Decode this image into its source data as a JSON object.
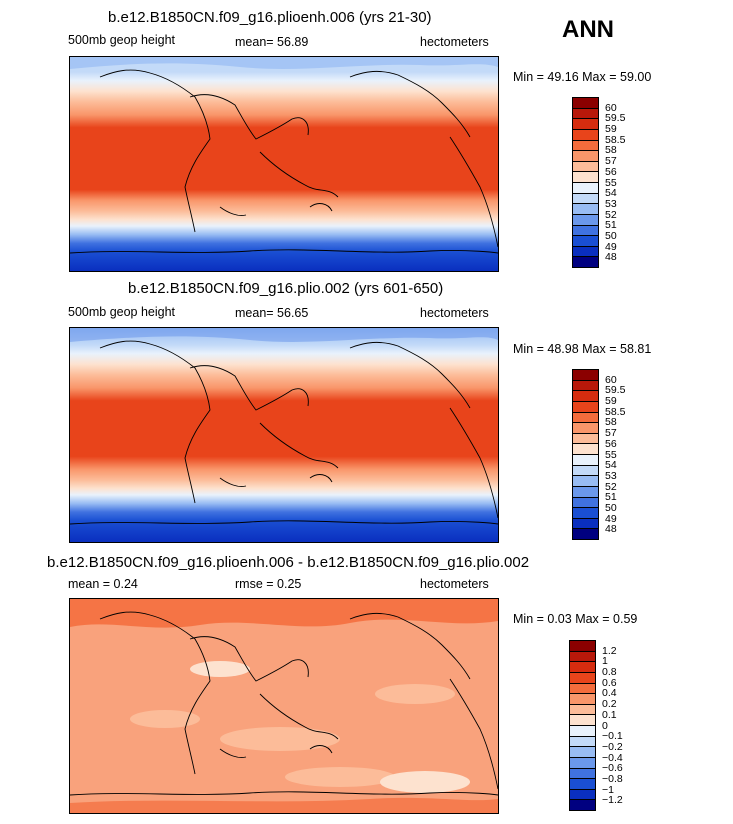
{
  "season": "ANN",
  "panels": [
    {
      "title": "b.e12.B1850CN.f09_g16.plioenh.006 (yrs 21-30)",
      "left_label": "500mb  geop height",
      "center_label": "mean=   56.89",
      "right_label": "hectometers",
      "stats": "Min =   49.16  Max =   59.00",
      "colorbar_labels": [
        "60",
        "59.5",
        "59",
        "58.5",
        "58",
        "57",
        "56",
        "55",
        "54",
        "53",
        "52",
        "51",
        "50",
        "49",
        "48"
      ],
      "colorbar_colors": [
        "#8b0000",
        "#b8180a",
        "#d62c0f",
        "#e8441b",
        "#f46c3c",
        "#f9966a",
        "#fcbc99",
        "#fde2cf",
        "#e9f2fc",
        "#c3daf8",
        "#98bcf3",
        "#6b98eb",
        "#4072e0",
        "#1a4fd3",
        "#0a2fbf",
        "#000080"
      ]
    },
    {
      "title": "b.e12.B1850CN.f09_g16.plio.002 (yrs 601-650)",
      "left_label": "500mb  geop height",
      "center_label": "mean=   56.65",
      "right_label": "hectometers",
      "stats": "Min =   48.98  Max =   58.81",
      "colorbar_labels": [
        "60",
        "59.5",
        "59",
        "58.5",
        "58",
        "57",
        "56",
        "55",
        "54",
        "53",
        "52",
        "51",
        "50",
        "49",
        "48"
      ],
      "colorbar_colors": [
        "#8b0000",
        "#b8180a",
        "#d62c0f",
        "#e8441b",
        "#f46c3c",
        "#f9966a",
        "#fcbc99",
        "#fde2cf",
        "#e9f2fc",
        "#c3daf8",
        "#98bcf3",
        "#6b98eb",
        "#4072e0",
        "#1a4fd3",
        "#0a2fbf",
        "#000080"
      ]
    },
    {
      "title": "b.e12.B1850CN.f09_g16.plioenh.006 - b.e12.B1850CN.f09_g16.plio.002",
      "left_label": "mean =    0.24",
      "center_label": "rmse =    0.25",
      "right_label": "hectometers",
      "stats": "Min =    0.03  Max =    0.59",
      "colorbar_labels": [
        "1.2",
        "1",
        "0.8",
        "0.6",
        "0.4",
        "0.2",
        "0.1",
        "0",
        "−0.1",
        "−0.2",
        "−0.4",
        "−0.6",
        "−0.8",
        "−1",
        "−1.2"
      ],
      "colorbar_colors": [
        "#8b0000",
        "#b8180a",
        "#d62c0f",
        "#e8441b",
        "#f46c3c",
        "#f9966a",
        "#fcbc99",
        "#fde2cf",
        "#e9f2fc",
        "#c3daf8",
        "#98bcf3",
        "#6b98eb",
        "#4072e0",
        "#1a4fd3",
        "#0a2fbf",
        "#000080"
      ]
    }
  ]
}
